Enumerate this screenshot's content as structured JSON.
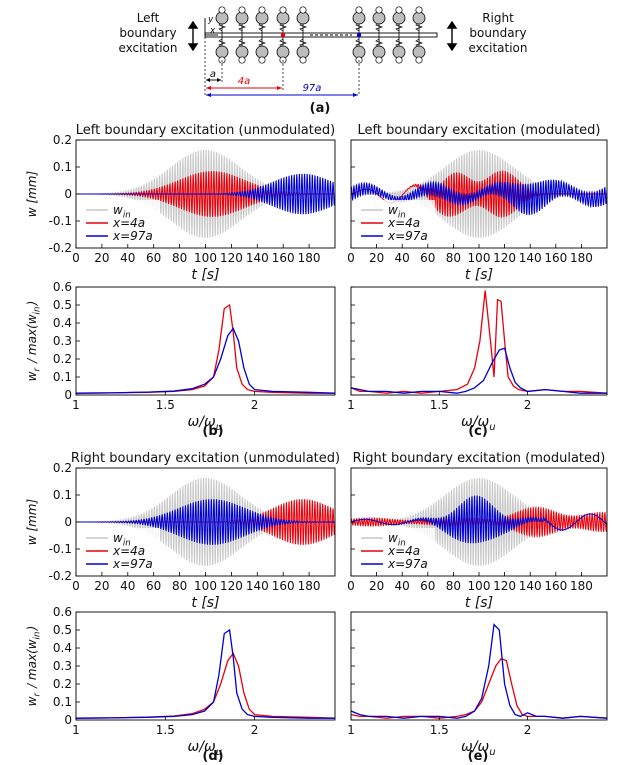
{
  "schematic": {
    "left_label": [
      "Left",
      "boundary",
      "excitation"
    ],
    "right_label": [
      "Right",
      "boundary",
      "excitation"
    ],
    "axis_y": "y",
    "axis_x": "x",
    "dim_a": "a",
    "dim_4a": "4a",
    "dim_97a": "97a",
    "colors": {
      "red": "#e8000b",
      "blue": "#0000d0"
    }
  },
  "panel_labels": {
    "a": "(a)",
    "b": "(b)",
    "c": "(c)",
    "d": "(d)",
    "e": "(e)"
  },
  "chart_data": [
    {
      "id": "time_left_unmod",
      "type": "line",
      "title": "Left boundary excitation (unmodulated)",
      "xlabel": "t [s]",
      "ylabel": "w [mm]",
      "xlim": [
        0,
        200
      ],
      "ylim": [
        -0.2,
        0.2
      ],
      "xticks": [
        0,
        20,
        40,
        60,
        80,
        100,
        120,
        140,
        160,
        180
      ],
      "yticks": [
        0.2,
        0.1,
        0,
        -0.1,
        -0.2
      ],
      "ytick_labels": [
        "0.2",
        "0.1",
        "0",
        "-0.1",
        "-0.2"
      ],
      "legend": [
        "w_in",
        "x=4a",
        "x=97a"
      ],
      "legend_position": "lower-left",
      "series": [
        {
          "name": "w_in",
          "color": "#c8c8c8",
          "kind": "packet",
          "center": 100,
          "width": 38,
          "amp": 0.165,
          "freq": 0.5
        },
        {
          "name": "x=4a",
          "color": "#e8000b",
          "kind": "packet",
          "center": 105,
          "width": 36,
          "amp": 0.085,
          "freq": 0.5
        },
        {
          "name": "x=97a",
          "color": "#0000d0",
          "kind": "packet",
          "center": 175,
          "width": 32,
          "amp": 0.075,
          "freq": 0.5
        }
      ]
    },
    {
      "id": "time_left_mod",
      "type": "line",
      "title": "Left boundary excitation (modulated)",
      "xlabel": "t [s]",
      "ylabel": "",
      "xlim": [
        0,
        200
      ],
      "ylim": [
        -0.2,
        0.2
      ],
      "xticks": [
        0,
        20,
        40,
        60,
        80,
        100,
        120,
        140,
        160,
        180
      ],
      "yticks": [],
      "ytick_labels": [],
      "legend": [
        "w_in",
        "x=4a",
        "x=97a"
      ],
      "legend_position": "lower-left",
      "series": [
        {
          "name": "w_in",
          "color": "#c8c8c8",
          "kind": "packet",
          "center": 100,
          "width": 38,
          "amp": 0.165,
          "freq": 0.5
        },
        {
          "name": "x=4a",
          "color": "#e8000b",
          "kind": "modred",
          "center": 100,
          "width": 30,
          "amp": 0.15,
          "freq": 0.5
        },
        {
          "name": "x=97a",
          "color": "#0000d0",
          "kind": "modblue",
          "center": 150,
          "width": 45,
          "amp": 0.06,
          "freq": 0.5
        }
      ]
    },
    {
      "id": "spec_left_unmod",
      "type": "line",
      "xlabel": "ω/ω_u",
      "ylabel": "w_r / max(w_in)",
      "xlim": [
        1,
        2.45
      ],
      "ylim": [
        0,
        0.6
      ],
      "xticks": [
        1,
        1.5,
        2
      ],
      "xtick_labels": [
        "1",
        "1.5",
        "2"
      ],
      "yticks": [
        0.6,
        0.5,
        0.4,
        0.3,
        0.2,
        0.1,
        0
      ],
      "ytick_labels": [
        "0.6",
        "0.5",
        "0.4",
        "0.3",
        "0.2",
        "0.1",
        "0"
      ],
      "series": [
        {
          "name": "x=4a",
          "color": "#e8000b",
          "x": [
            1.0,
            1.2,
            1.4,
            1.55,
            1.65,
            1.72,
            1.77,
            1.8,
            1.83,
            1.86,
            1.88,
            1.9,
            1.93,
            1.96,
            2.0,
            2.1,
            2.3,
            2.45
          ],
          "y": [
            0.01,
            0.012,
            0.015,
            0.02,
            0.03,
            0.05,
            0.1,
            0.25,
            0.48,
            0.5,
            0.35,
            0.15,
            0.06,
            0.03,
            0.02,
            0.015,
            0.01,
            0.01
          ]
        },
        {
          "name": "x=97a",
          "color": "#0000d0",
          "x": [
            1.0,
            1.2,
            1.4,
            1.55,
            1.65,
            1.72,
            1.77,
            1.81,
            1.85,
            1.88,
            1.91,
            1.94,
            1.97,
            2.0,
            2.1,
            2.3,
            2.45
          ],
          "y": [
            0.01,
            0.012,
            0.016,
            0.022,
            0.035,
            0.06,
            0.1,
            0.2,
            0.33,
            0.37,
            0.3,
            0.15,
            0.06,
            0.03,
            0.02,
            0.015,
            0.01
          ]
        }
      ]
    },
    {
      "id": "spec_left_mod",
      "type": "line",
      "xlabel": "ω/ω_u",
      "ylabel": "",
      "xlim": [
        1,
        2.45
      ],
      "ylim": [
        0,
        0.6
      ],
      "xticks": [
        1,
        1.5,
        2
      ],
      "xtick_labels": [
        "1",
        "1.5",
        "2"
      ],
      "yticks": [],
      "ytick_labels": [],
      "series": [
        {
          "name": "x=4a",
          "color": "#e8000b",
          "x": [
            1.0,
            1.05,
            1.1,
            1.2,
            1.3,
            1.4,
            1.5,
            1.6,
            1.66,
            1.7,
            1.73,
            1.76,
            1.79,
            1.81,
            1.83,
            1.85,
            1.87,
            1.89,
            1.92,
            1.95,
            2.0,
            2.1,
            2.2,
            2.3,
            2.45
          ],
          "y": [
            0.04,
            0.02,
            0.02,
            0.01,
            0.02,
            0.01,
            0.02,
            0.03,
            0.06,
            0.15,
            0.3,
            0.58,
            0.3,
            0.1,
            0.53,
            0.52,
            0.3,
            0.1,
            0.05,
            0.03,
            0.02,
            0.03,
            0.02,
            0.02,
            0.01
          ]
        },
        {
          "name": "x=97a",
          "color": "#0000d0",
          "x": [
            1.0,
            1.05,
            1.1,
            1.2,
            1.3,
            1.4,
            1.5,
            1.6,
            1.65,
            1.7,
            1.75,
            1.8,
            1.84,
            1.87,
            1.9,
            1.93,
            1.96,
            2.0,
            2.1,
            2.2,
            2.3,
            2.45
          ],
          "y": [
            0.04,
            0.03,
            0.02,
            0.02,
            0.01,
            0.02,
            0.02,
            0.01,
            0.02,
            0.04,
            0.08,
            0.18,
            0.25,
            0.26,
            0.15,
            0.07,
            0.04,
            0.02,
            0.03,
            0.02,
            0.01,
            0.01
          ]
        }
      ]
    },
    {
      "id": "time_right_unmod",
      "type": "line",
      "title": "Right boundary excitation (unmodulated)",
      "xlabel": "t [s]",
      "ylabel": "w [mm]",
      "xlim": [
        0,
        200
      ],
      "ylim": [
        -0.2,
        0.2
      ],
      "xticks": [
        0,
        20,
        40,
        60,
        80,
        100,
        120,
        140,
        160,
        180
      ],
      "yticks": [
        0.2,
        0.1,
        0,
        -0.1,
        -0.2
      ],
      "ytick_labels": [
        "0.2",
        "0.1",
        "0",
        "-0.1",
        "-0.2"
      ],
      "legend": [
        "w_in",
        "x=4a",
        "x=97a"
      ],
      "legend_position": "lower-left",
      "series": [
        {
          "name": "w_in",
          "color": "#c8c8c8",
          "kind": "packet",
          "center": 100,
          "width": 38,
          "amp": 0.165,
          "freq": 0.5
        },
        {
          "name": "x=4a",
          "color": "#e8000b",
          "kind": "packet",
          "center": 175,
          "width": 32,
          "amp": 0.085,
          "freq": 0.5
        },
        {
          "name": "x=97a",
          "color": "#0000d0",
          "kind": "packet",
          "center": 105,
          "width": 36,
          "amp": 0.085,
          "freq": 0.5
        }
      ]
    },
    {
      "id": "time_right_mod",
      "type": "line",
      "title": "Right boundary excitation (modulated)",
      "xlabel": "t [s]",
      "ylabel": "",
      "xlim": [
        0,
        200
      ],
      "ylim": [
        -0.2,
        0.2
      ],
      "xticks": [
        0,
        20,
        40,
        60,
        80,
        100,
        120,
        140,
        160,
        180
      ],
      "yticks": [],
      "ytick_labels": [],
      "legend": [
        "w_in",
        "x=4a",
        "x=97a"
      ],
      "legend_position": "lower-left",
      "series": [
        {
          "name": "w_in",
          "color": "#c8c8c8",
          "kind": "packet",
          "center": 100,
          "width": 38,
          "amp": 0.165,
          "freq": 0.5
        },
        {
          "name": "x=4a",
          "color": "#e8000b",
          "kind": "modred2",
          "center": 160,
          "width": 45,
          "amp": 0.06,
          "freq": 0.5
        },
        {
          "name": "x=97a",
          "color": "#0000d0",
          "kind": "modblue2",
          "center": 100,
          "width": 32,
          "amp": 0.09,
          "freq": 0.5
        }
      ]
    },
    {
      "id": "spec_right_unmod",
      "type": "line",
      "xlabel": "ω/ω_u",
      "ylabel": "w_r / max(w_in)",
      "xlim": [
        1,
        2.45
      ],
      "ylim": [
        0,
        0.6
      ],
      "xticks": [
        1,
        1.5,
        2
      ],
      "xtick_labels": [
        "1",
        "1.5",
        "2"
      ],
      "yticks": [
        0.6,
        0.5,
        0.4,
        0.3,
        0.2,
        0.1,
        0
      ],
      "ytick_labels": [
        "0.6",
        "0.5",
        "0.4",
        "0.3",
        "0.2",
        "0.1",
        "0"
      ],
      "series": [
        {
          "name": "x=4a",
          "color": "#e8000b",
          "x": [
            1.0,
            1.2,
            1.4,
            1.55,
            1.65,
            1.72,
            1.77,
            1.81,
            1.85,
            1.88,
            1.91,
            1.94,
            1.97,
            2.0,
            2.1,
            2.3,
            2.45
          ],
          "y": [
            0.01,
            0.012,
            0.016,
            0.022,
            0.035,
            0.06,
            0.1,
            0.2,
            0.33,
            0.37,
            0.3,
            0.15,
            0.06,
            0.03,
            0.02,
            0.015,
            0.01
          ]
        },
        {
          "name": "x=97a",
          "color": "#0000d0",
          "x": [
            1.0,
            1.2,
            1.4,
            1.55,
            1.65,
            1.72,
            1.77,
            1.8,
            1.83,
            1.86,
            1.88,
            1.9,
            1.93,
            1.96,
            2.0,
            2.1,
            2.3,
            2.45
          ],
          "y": [
            0.01,
            0.012,
            0.015,
            0.02,
            0.03,
            0.05,
            0.1,
            0.25,
            0.48,
            0.5,
            0.35,
            0.15,
            0.06,
            0.03,
            0.02,
            0.015,
            0.01,
            0.01
          ]
        }
      ]
    },
    {
      "id": "spec_right_mod",
      "type": "line",
      "xlabel": "ω/ω_u",
      "ylabel": "",
      "xlim": [
        1,
        2.45
      ],
      "ylim": [
        0,
        0.6
      ],
      "xticks": [
        1,
        1.5,
        2
      ],
      "xtick_labels": [
        "1",
        "1.5",
        "2"
      ],
      "yticks": [],
      "ytick_labels": [],
      "series": [
        {
          "name": "x=4a",
          "color": "#e8000b",
          "x": [
            1.0,
            1.05,
            1.1,
            1.2,
            1.3,
            1.4,
            1.5,
            1.6,
            1.65,
            1.7,
            1.74,
            1.78,
            1.82,
            1.85,
            1.88,
            1.91,
            1.94,
            1.97,
            2.0,
            2.1,
            2.2,
            2.3,
            2.45
          ],
          "y": [
            0.03,
            0.02,
            0.02,
            0.01,
            0.02,
            0.02,
            0.01,
            0.02,
            0.03,
            0.05,
            0.1,
            0.2,
            0.3,
            0.34,
            0.33,
            0.2,
            0.08,
            0.03,
            0.02,
            0.02,
            0.01,
            0.02,
            0.01
          ]
        },
        {
          "name": "x=97a",
          "color": "#0000d0",
          "x": [
            1.0,
            1.05,
            1.1,
            1.2,
            1.3,
            1.4,
            1.5,
            1.6,
            1.65,
            1.7,
            1.74,
            1.78,
            1.81,
            1.84,
            1.87,
            1.9,
            1.93,
            1.96,
            2.0,
            2.05,
            2.1,
            2.2,
            2.3,
            2.45
          ],
          "y": [
            0.05,
            0.03,
            0.02,
            0.02,
            0.01,
            0.02,
            0.02,
            0.01,
            0.02,
            0.05,
            0.12,
            0.3,
            0.53,
            0.5,
            0.2,
            0.08,
            0.03,
            0.02,
            0.04,
            0.02,
            0.02,
            0.01,
            0.02,
            0.01
          ]
        }
      ]
    }
  ]
}
